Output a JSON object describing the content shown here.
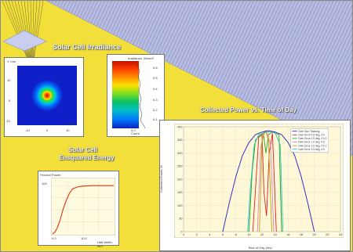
{
  "poster": {
    "colors": {
      "background": "#f2df3a",
      "frame": "#ffffff",
      "plot_bg": "#fffbe0"
    },
    "titles": {
      "irradiance": "Solar Cell Irradiance",
      "ensquared_line1": "Solar Cell",
      "ensquared_line2": "Ensquared Energy",
      "collected_power": "Collected Power vs. Time of Day"
    },
    "irradiance_map": {
      "ylabel": "Y, mm",
      "xlabel": "X, mm",
      "yticks": [
        "10",
        "0",
        "-10"
      ],
      "xticks": [
        "-10",
        "0",
        "10"
      ]
    },
    "colorbar": {
      "title": "Irradiance, W/mm²",
      "ticks": [
        "0.6",
        "0.5",
        "0.4",
        "0.3",
        "0.2",
        "0.1",
        "0.0"
      ],
      "bottom_label": "Count"
    },
    "ensquared": {
      "ylabel": "Percent Power",
      "yticks": [
        "100"
      ],
      "xticks": [
        "0.0",
        "10.0"
      ],
      "xlabel": "Half-Width, mm"
    },
    "power": {
      "ylabel": "Collected Power, W",
      "xlabel": "Time of Day (hrs)",
      "yticks": [
        "400",
        "350",
        "300",
        "250",
        "200",
        "150",
        "100",
        "50",
        "0"
      ],
      "xticks": [
        "0",
        "2",
        "4",
        "6",
        "8",
        "10",
        "12",
        "14",
        "16",
        "18",
        "20",
        "22",
        "24"
      ],
      "legend": [
        "Over Sun Tracking",
        "Over Error 0.5 deg, 4 h",
        "Over Error 0.5 deg, 4 h 2",
        "Over Error 1.0 deg, 4 h",
        "Over Error 1.0 deg, 4 h 2",
        "Over Error 1.5 deg, 4 h"
      ]
    }
  },
  "chart_data": [
    {
      "type": "line",
      "title": "Collected Power vs. Time of Day",
      "xlabel": "Time of Day (hrs)",
      "ylabel": "Collected Power, W",
      "xlim": [
        0,
        24
      ],
      "ylim": [
        0,
        400
      ],
      "x": [
        6,
        7,
        8,
        9,
        10,
        11,
        12,
        13,
        14,
        15,
        16,
        17,
        18,
        19,
        20
      ],
      "series": [
        {
          "name": "Over Sun Tracking",
          "color": "#3030c0",
          "values": [
            0,
            110,
            210,
            290,
            340,
            370,
            380,
            385,
            380,
            370,
            340,
            290,
            210,
            110,
            0
          ]
        }
      ],
      "overlay_curves": [
        {
          "color": "#e02020",
          "x": [
            10.6,
            11.1,
            11.5,
            12.0,
            12.3,
            12.7,
            13.1,
            13.6,
            14.2
          ],
          "values": [
            0,
            200,
            360,
            370,
            150,
            60,
            300,
            375,
            0
          ]
        },
        {
          "color": "#20a020",
          "x": [
            10.0,
            10.5,
            11.0,
            11.6,
            12.2,
            12.6,
            13.0,
            13.6,
            14.6,
            15.0
          ],
          "values": [
            0,
            230,
            350,
            365,
            375,
            300,
            370,
            380,
            370,
            0
          ]
        },
        {
          "color": "#e080c0",
          "x": [
            11.3,
            11.8,
            12.3,
            12.8,
            13.3,
            13.8
          ],
          "values": [
            0,
            320,
            380,
            378,
            330,
            0
          ]
        },
        {
          "color": "#c0a000",
          "x": [
            11.6,
            12.0,
            12.5,
            13.0,
            13.5
          ],
          "values": [
            0,
            350,
            385,
            350,
            0
          ]
        },
        {
          "color": "#30c0c0",
          "x": [
            9.8,
            10.2,
            10.8,
            11.5,
            12.4,
            13.2,
            14.0,
            14.8,
            15.2
          ],
          "values": [
            0,
            160,
            330,
            370,
            378,
            382,
            378,
            330,
            0
          ]
        }
      ]
    },
    {
      "type": "line",
      "title": "Ensquared Energy",
      "xlabel": "Half-Width, mm",
      "ylabel": "Percent Power",
      "xlim": [
        0,
        20
      ],
      "ylim": [
        0,
        110
      ],
      "series": [
        {
          "name": "",
          "color": "#e03010",
          "x": [
            0,
            0.8,
            1.5,
            2.5,
            3.5,
            4.5,
            5.5,
            6.5,
            8,
            10,
            13,
            16,
            20
          ],
          "values": [
            0,
            4,
            12,
            30,
            52,
            70,
            84,
            93,
            97,
            99,
            100,
            100,
            100
          ]
        }
      ]
    }
  ]
}
